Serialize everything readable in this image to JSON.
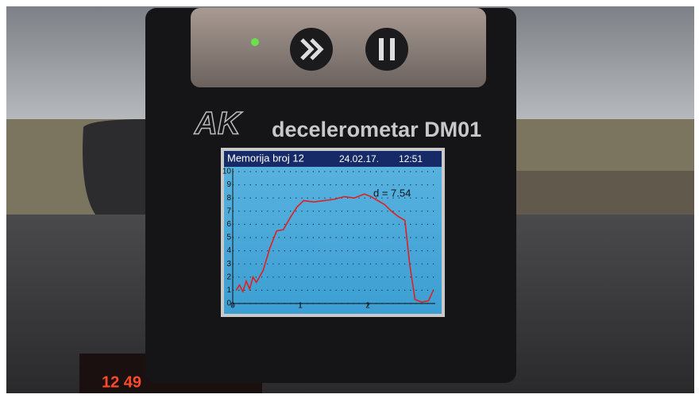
{
  "device": {
    "logo": "AK",
    "model": "decelerometar DM01"
  },
  "dashboard_clock": "12 49",
  "chart_data": {
    "type": "line",
    "title": "Memorija broj 12",
    "date": "24.02.17.",
    "time": "12:51",
    "annotation": "d = 7.54",
    "x": [
      0.05,
      0.1,
      0.15,
      0.2,
      0.25,
      0.3,
      0.35,
      0.45,
      0.55,
      0.65,
      0.75,
      0.85,
      0.95,
      1.05,
      1.2,
      1.35,
      1.5,
      1.65,
      1.8,
      1.95,
      2.05,
      2.15,
      2.25,
      2.35,
      2.45,
      2.55,
      2.62,
      2.7,
      2.8,
      2.9,
      2.97
    ],
    "series": [
      {
        "color": "#e02020",
        "values": [
          1.0,
          1.4,
          0.9,
          1.7,
          1.1,
          2.0,
          1.6,
          2.5,
          4.2,
          5.5,
          5.6,
          6.5,
          7.3,
          7.8,
          7.7,
          7.8,
          7.9,
          8.1,
          8.0,
          8.3,
          8.1,
          7.8,
          7.5,
          7.0,
          6.6,
          6.3,
          3.0,
          0.3,
          0.1,
          0.2,
          1.0
        ]
      }
    ],
    "xlim": [
      0,
      3
    ],
    "xticks": [
      0,
      1,
      2
    ],
    "ylim": [
      0,
      10
    ],
    "yticks": [
      0,
      1,
      2,
      3,
      4,
      5,
      6,
      7,
      8,
      9,
      10
    ],
    "grid": true
  }
}
